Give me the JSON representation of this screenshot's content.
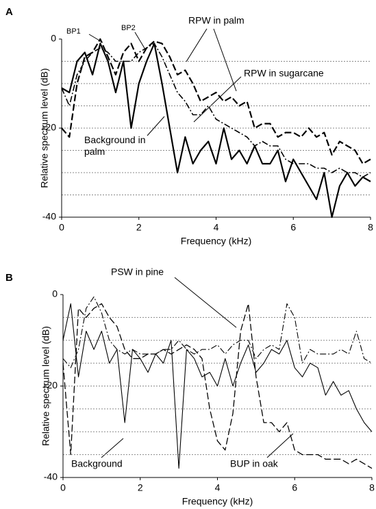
{
  "chart_data": [
    {
      "type": "line",
      "panel": "A",
      "xlabel": "Frequency (kHz)",
      "ylabel": "Relative spectrum level (dB)",
      "x": [
        0,
        0.2,
        0.4,
        0.6,
        0.8,
        1.0,
        1.2,
        1.4,
        1.6,
        1.8,
        2.0,
        2.2,
        2.4,
        2.6,
        2.8,
        3.0,
        3.2,
        3.4,
        3.6,
        3.8,
        4.0,
        4.2,
        4.4,
        4.6,
        4.8,
        5.0,
        5.2,
        5.4,
        5.6,
        5.8,
        6.0,
        6.2,
        6.4,
        6.6,
        6.8,
        7.0,
        7.2,
        7.4,
        7.6,
        7.8,
        8.0
      ],
      "xlim": [
        0,
        8
      ],
      "xticks": [
        0,
        2,
        4,
        6,
        8
      ],
      "ylim": [
        -40,
        0
      ],
      "yticks": [
        0,
        -20,
        -40
      ],
      "ygrid": [
        -5,
        -10,
        -15,
        -20,
        -25,
        -30,
        -35
      ],
      "annotations": [
        "BP1",
        "BP2"
      ],
      "series": [
        {
          "name": "Background in palm",
          "color": "#000000",
          "line_style": "solid",
          "values": [
            -11,
            -12,
            -5,
            -3,
            -8,
            -1,
            -5,
            -12,
            -5,
            -20,
            -10,
            -5,
            -1,
            -10,
            -20,
            -30,
            -22,
            -28,
            -25,
            -23,
            -28,
            -20,
            -27,
            -25,
            -28,
            -24,
            -28,
            -28,
            -25,
            -32,
            -27,
            -30,
            -33,
            -36,
            -30,
            -40,
            -33,
            -30,
            -33,
            -31,
            -32
          ]
        },
        {
          "name": "RPW in palm",
          "color": "#000000",
          "line_style": "dashed",
          "values": [
            -20,
            -22,
            -10,
            -4,
            -3,
            0,
            -4,
            -8,
            -3,
            -1,
            -5,
            -2,
            -0.5,
            -1,
            -4,
            -8,
            -7,
            -10,
            -14,
            -13,
            -12,
            -14,
            -13,
            -15,
            -14,
            -20,
            -19,
            -19,
            -22,
            -21,
            -21,
            -22,
            -20,
            -22,
            -21,
            -26,
            -23,
            -24,
            -25,
            -28,
            -27
          ]
        },
        {
          "name": "RPW in sugarcane",
          "color": "#000000",
          "line_style": "dashdot",
          "values": [
            -11,
            -15,
            -8,
            -5,
            -3,
            -2,
            -3,
            -5,
            -5,
            -5,
            -3,
            -2,
            -1,
            -4,
            -8,
            -12,
            -14,
            -17,
            -17,
            -15,
            -18,
            -19,
            -20,
            -21,
            -22,
            -24,
            -23,
            -24,
            -24,
            -27,
            -28,
            -28,
            -28,
            -29,
            -29,
            -30,
            -29,
            -30,
            -30,
            -31,
            -30
          ]
        }
      ]
    },
    {
      "type": "line",
      "panel": "B",
      "xlabel": "Frequency (kHz)",
      "ylabel": "Relative spectrum level (dB)",
      "x": [
        0,
        0.2,
        0.4,
        0.6,
        0.8,
        1.0,
        1.2,
        1.4,
        1.6,
        1.8,
        2.0,
        2.2,
        2.4,
        2.6,
        2.8,
        3.0,
        3.2,
        3.4,
        3.6,
        3.8,
        4.0,
        4.2,
        4.4,
        4.6,
        4.8,
        5.0,
        5.2,
        5.4,
        5.6,
        5.8,
        6.0,
        6.2,
        6.4,
        6.6,
        6.8,
        7.0,
        7.2,
        7.4,
        7.6,
        7.8,
        8.0
      ],
      "xlim": [
        0,
        8
      ],
      "xticks": [
        0,
        2,
        4,
        6,
        8
      ],
      "ylim": [
        -40,
        0
      ],
      "yticks": [
        0,
        -20,
        -40
      ],
      "ygrid": [
        -5,
        -10,
        -15,
        -20,
        -25,
        -30,
        -35
      ],
      "series": [
        {
          "name": "Background",
          "color": "#000000",
          "line_style": "solid",
          "values": [
            -10,
            -2,
            -18,
            -8,
            -12,
            -8,
            -15,
            -12,
            -28,
            -12,
            -14,
            -17,
            -13,
            -15,
            -10,
            -38,
            -12,
            -14,
            -18,
            -17,
            -20,
            -14,
            -20,
            -15,
            -11,
            -17,
            -15,
            -12,
            -13,
            -10,
            -16,
            -18,
            -15,
            -16,
            -22,
            -19,
            -22,
            -21,
            -25,
            -28,
            -30
          ]
        },
        {
          "name": "PSW in pine",
          "color": "#000000",
          "line_style": "dashed",
          "values": [
            -15,
            -35,
            -3,
            -5,
            -3,
            -2,
            -5,
            -7,
            -12,
            -14,
            -14,
            -13,
            -13,
            -12,
            -13,
            -12,
            -11,
            -12,
            -14,
            -25,
            -32,
            -34,
            -26,
            -8,
            -2,
            -18,
            -28,
            -28,
            -30,
            -28,
            -34,
            -35,
            -35,
            -35,
            -36,
            -36,
            -36,
            -37,
            -36,
            -37,
            -38
          ]
        },
        {
          "name": "BUP in oak",
          "color": "#000000",
          "line_style": "dashdot",
          "values": [
            -14,
            -16,
            -12,
            -3,
            -0.5,
            -4,
            -10,
            -12,
            -13,
            -12,
            -13,
            -13,
            -13,
            -12,
            -12,
            -10,
            -12,
            -13,
            -12,
            -12,
            -11,
            -13,
            -11,
            -10,
            -10,
            -14,
            -12,
            -11,
            -12,
            -2,
            -5,
            -15,
            -12,
            -13,
            -13,
            -13,
            -12,
            -13,
            -8,
            -14,
            -15
          ]
        }
      ]
    }
  ]
}
